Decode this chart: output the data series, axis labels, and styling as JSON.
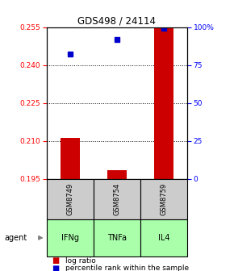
{
  "title": "GDS498 / 24114",
  "samples": [
    "GSM8749",
    "GSM8754",
    "GSM8759"
  ],
  "agents": [
    "IFNg",
    "TNFa",
    "IL4"
  ],
  "log_ratios": [
    0.2112,
    0.1985,
    0.2552
  ],
  "percentile_ranks": [
    82,
    92,
    99
  ],
  "ylim_left": [
    0.195,
    0.255
  ],
  "ylim_right": [
    0,
    100
  ],
  "yticks_left": [
    0.195,
    0.21,
    0.225,
    0.24,
    0.255
  ],
  "yticks_right": [
    0,
    25,
    50,
    75,
    100
  ],
  "ytick_right_labels": [
    "0",
    "25",
    "50",
    "75",
    "100%"
  ],
  "bar_color": "#cc0000",
  "point_color": "#0000cc",
  "agent_color": "#aaffaa",
  "sample_box_color": "#cccccc",
  "baseline": 0.195,
  "bar_width": 0.4
}
